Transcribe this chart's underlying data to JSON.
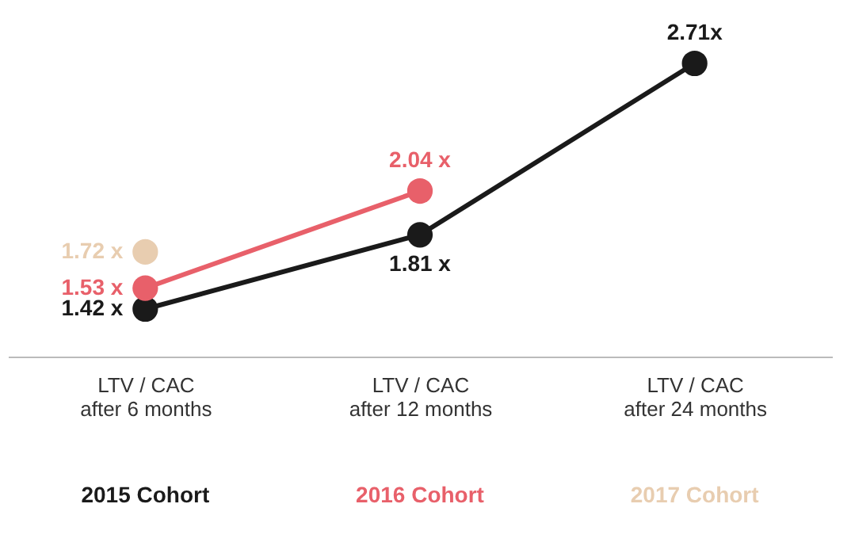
{
  "chart_data": {
    "type": "line",
    "categories": [
      "LTV / CAC\nafter 6 months",
      "LTV / CAC\nafter 12 months",
      "LTV / CAC\nafter 24 months"
    ],
    "series": [
      {
        "name": "2015 Cohort",
        "color": "#1a1a1a",
        "values": [
          1.42,
          1.81,
          2.71
        ],
        "value_labels": [
          "1.42 x",
          "1.81 x",
          "2.71x"
        ]
      },
      {
        "name": "2016 Cohort",
        "color": "#e8606a",
        "values": [
          1.53,
          2.04,
          null
        ],
        "value_labels": [
          "1.53 x",
          "2.04 x",
          null
        ]
      },
      {
        "name": "2017 Cohort",
        "color": "#e8cdb0",
        "values": [
          1.72,
          null,
          null
        ],
        "value_labels": [
          "1.72 x",
          null,
          null
        ]
      }
    ],
    "tick_labels": "x",
    "grid": false,
    "legend": "bottom",
    "marker": "circle",
    "line_style": "solid"
  }
}
